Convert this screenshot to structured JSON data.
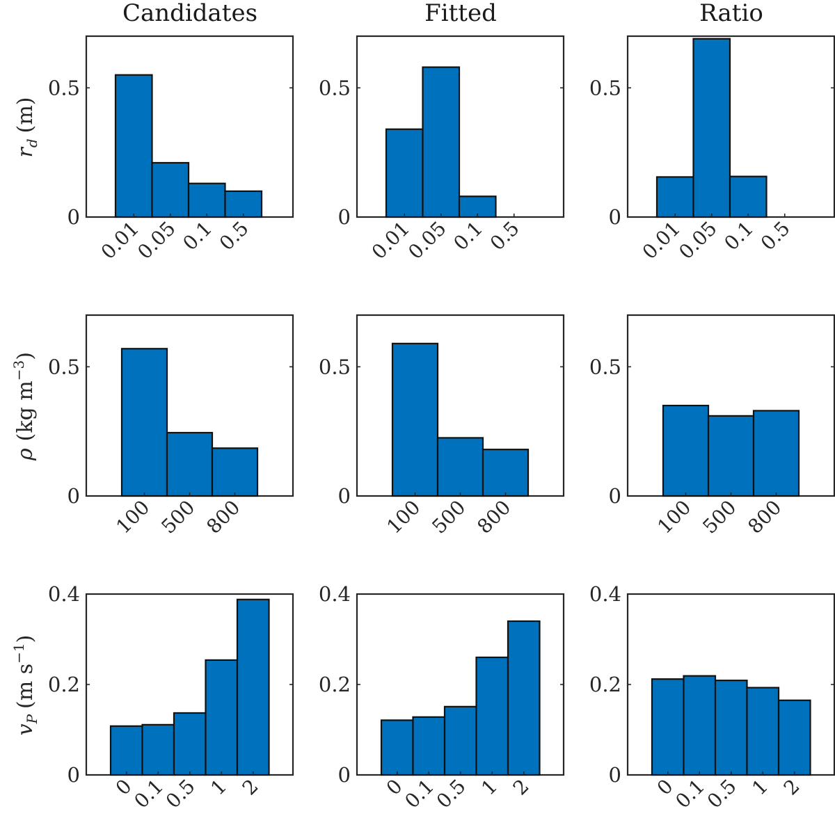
{
  "columns": [
    "Candidates",
    "Fitted",
    "Ratio"
  ],
  "rows": [
    {
      "ylabel_symbol": "r",
      "ylabel_sub": "d",
      "ylabel_sup": "",
      "ylabel_unit": "(m)",
      "ylabel_unit_post": "",
      "ylim": [
        0,
        0.7
      ],
      "yticks": [
        0,
        0.5
      ],
      "ytick_labels": [
        "0",
        "0.5"
      ]
    },
    {
      "ylabel_symbol": "ρ",
      "ylabel_sub": "",
      "ylabel_sup": "−3",
      "ylabel_unit": "(kg m",
      "ylabel_unit_post": ")",
      "ylim": [
        0,
        0.7
      ],
      "yticks": [
        0,
        0.5
      ],
      "ytick_labels": [
        "0",
        "0.5"
      ]
    },
    {
      "ylabel_symbol": "v",
      "ylabel_sub": "P",
      "ylabel_sup": "−1",
      "ylabel_unit": "(m s",
      "ylabel_unit_post": ")",
      "ylim": [
        0,
        0.4
      ],
      "yticks": [
        0,
        0.2,
        0.4
      ],
      "ytick_labels": [
        "0",
        "0.2",
        "0.4"
      ]
    }
  ],
  "colors": {
    "bar": "#0072BD",
    "edge": "#111111",
    "axes": "#262626"
  },
  "chart_data": [
    {
      "type": "bar",
      "title": "Candidates",
      "categories": [
        "0.01",
        "0.05",
        "0.1",
        "0.5"
      ],
      "values": [
        0.55,
        0.21,
        0.13,
        0.1
      ],
      "ylabel": "r_d (m)",
      "ylim": [
        0,
        0.7
      ]
    },
    {
      "type": "bar",
      "title": "Fitted",
      "categories": [
        "0.01",
        "0.05",
        "0.1",
        "0.5"
      ],
      "values": [
        0.34,
        0.58,
        0.08,
        0.0
      ],
      "ylabel": "",
      "ylim": [
        0,
        0.7
      ]
    },
    {
      "type": "bar",
      "title": "Ratio",
      "categories": [
        "0.01",
        "0.05",
        "0.1",
        "0.5"
      ],
      "values": [
        0.155,
        0.69,
        0.157,
        0.0
      ],
      "ylabel": "",
      "ylim": [
        0,
        0.7
      ]
    },
    {
      "type": "bar",
      "title": "",
      "categories": [
        "100",
        "500",
        "800"
      ],
      "values": [
        0.57,
        0.245,
        0.185
      ],
      "ylabel": "ρ (kg m^−3)",
      "ylim": [
        0,
        0.7
      ]
    },
    {
      "type": "bar",
      "title": "",
      "categories": [
        "100",
        "500",
        "800"
      ],
      "values": [
        0.59,
        0.225,
        0.18
      ],
      "ylabel": "",
      "ylim": [
        0,
        0.7
      ]
    },
    {
      "type": "bar",
      "title": "",
      "categories": [
        "100",
        "500",
        "800"
      ],
      "values": [
        0.35,
        0.31,
        0.33
      ],
      "ylabel": "",
      "ylim": [
        0,
        0.7
      ]
    },
    {
      "type": "bar",
      "title": "",
      "categories": [
        "0",
        "0.1",
        "0.5",
        "1",
        "2"
      ],
      "values": [
        0.108,
        0.111,
        0.137,
        0.254,
        0.388
      ],
      "ylabel": "v_P (m s^−1)",
      "ylim": [
        0,
        0.4
      ]
    },
    {
      "type": "bar",
      "title": "",
      "categories": [
        "0",
        "0.1",
        "0.5",
        "1",
        "2"
      ],
      "values": [
        0.121,
        0.128,
        0.151,
        0.26,
        0.34
      ],
      "ylabel": "",
      "ylim": [
        0,
        0.4
      ]
    },
    {
      "type": "bar",
      "title": "",
      "categories": [
        "0",
        "0.1",
        "0.5",
        "1",
        "2"
      ],
      "values": [
        0.212,
        0.219,
        0.209,
        0.193,
        0.165
      ],
      "ylabel": "",
      "ylim": [
        0,
        0.4
      ]
    }
  ]
}
